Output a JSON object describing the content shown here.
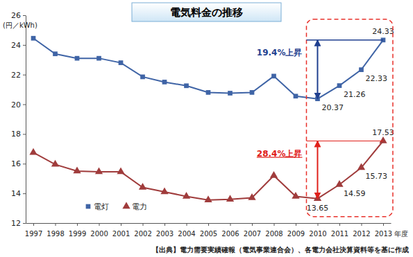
{
  "chart_data": {
    "type": "line",
    "title": "電気料金の推移",
    "y_label": "(円／kWh)",
    "x_label": "年度",
    "source": "【出典】電力需要実績確報（電気事業連合会）、各電力会社決算資料等を基に作成",
    "categories": [
      "1997",
      "1998",
      "1999",
      "2000",
      "2001",
      "2002",
      "2003",
      "2004",
      "2005",
      "2006",
      "2007",
      "2008",
      "2009",
      "2010",
      "2011",
      "2012",
      "2013"
    ],
    "series": [
      {
        "name": "電灯",
        "color": "#3f64a6",
        "marker": "square",
        "values": [
          24.45,
          23.4,
          23.1,
          23.1,
          22.8,
          21.85,
          21.5,
          21.25,
          20.8,
          20.75,
          20.8,
          21.9,
          20.55,
          20.37,
          21.26,
          22.33,
          24.33
        ],
        "value_labels": [
          null,
          null,
          null,
          null,
          null,
          null,
          null,
          null,
          null,
          null,
          null,
          null,
          null,
          "20.37",
          "21.26",
          "22.33",
          "24.33"
        ]
      },
      {
        "name": "電力",
        "color": "#a03c3c",
        "marker": "triangle",
        "values": [
          16.75,
          15.95,
          15.5,
          15.45,
          15.45,
          14.4,
          14.1,
          13.8,
          13.55,
          13.6,
          13.7,
          15.2,
          13.8,
          13.65,
          14.59,
          15.73,
          17.53
        ],
        "value_labels": [
          null,
          null,
          null,
          null,
          null,
          null,
          null,
          null,
          null,
          null,
          null,
          null,
          null,
          "13.65",
          "14.59",
          "15.73",
          "17.53"
        ]
      }
    ],
    "ylim": [
      12,
      26
    ],
    "yticks": [
      12,
      14,
      16,
      18,
      20,
      22,
      24,
      26
    ],
    "grid": false,
    "legend": "lower left",
    "data_labels": true,
    "annotations": [
      {
        "text": "19.4%上昇",
        "color": "#1f3f8f"
      },
      {
        "text": "28.4%上昇",
        "color": "#e0201a"
      }
    ]
  }
}
